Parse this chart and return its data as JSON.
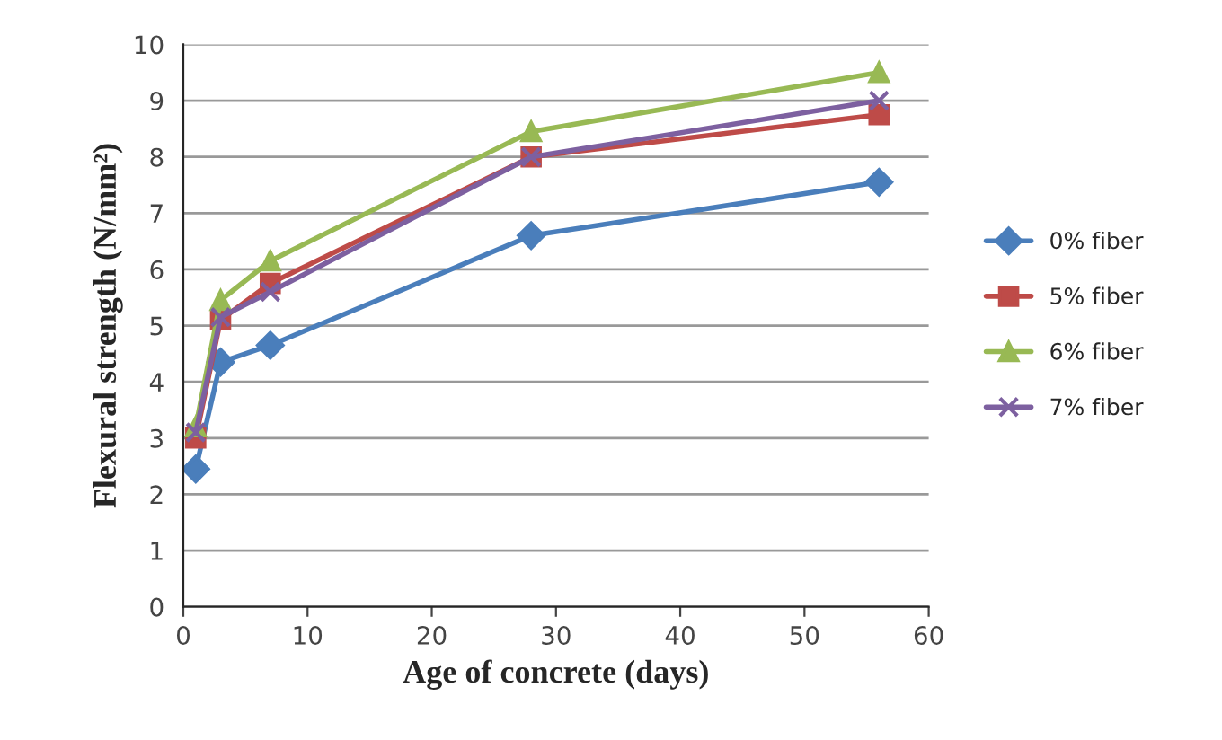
{
  "chart_data": {
    "type": "line",
    "xlabel": "Age of concrete (days)",
    "ylabel": "Flexural strength (N/mm²)",
    "x": [
      1,
      3,
      7,
      28,
      56
    ],
    "series": [
      {
        "name": "0% fiber",
        "color": "#4a7ebb",
        "marker": "diamond",
        "values": [
          2.45,
          4.35,
          4.65,
          6.6,
          7.55
        ]
      },
      {
        "name": "5% fiber",
        "color": "#be4b48",
        "marker": "square",
        "values": [
          3.0,
          5.1,
          5.75,
          8.0,
          8.75
        ]
      },
      {
        "name": "6% fiber",
        "color": "#98b954",
        "marker": "triangle",
        "values": [
          3.2,
          5.45,
          6.15,
          8.45,
          9.5
        ]
      },
      {
        "name": "7% fiber",
        "color": "#7d60a0",
        "marker": "cross",
        "values": [
          3.1,
          5.15,
          5.6,
          8.0,
          9.0
        ]
      }
    ],
    "xlim": [
      0,
      60
    ],
    "xticks": [
      0,
      10,
      20,
      30,
      40,
      50,
      60
    ],
    "ylim": [
      0,
      10
    ],
    "yticks": [
      0,
      1,
      2,
      3,
      4,
      5,
      6,
      7,
      8,
      9,
      10
    ],
    "grid": "y",
    "legend": "right"
  }
}
